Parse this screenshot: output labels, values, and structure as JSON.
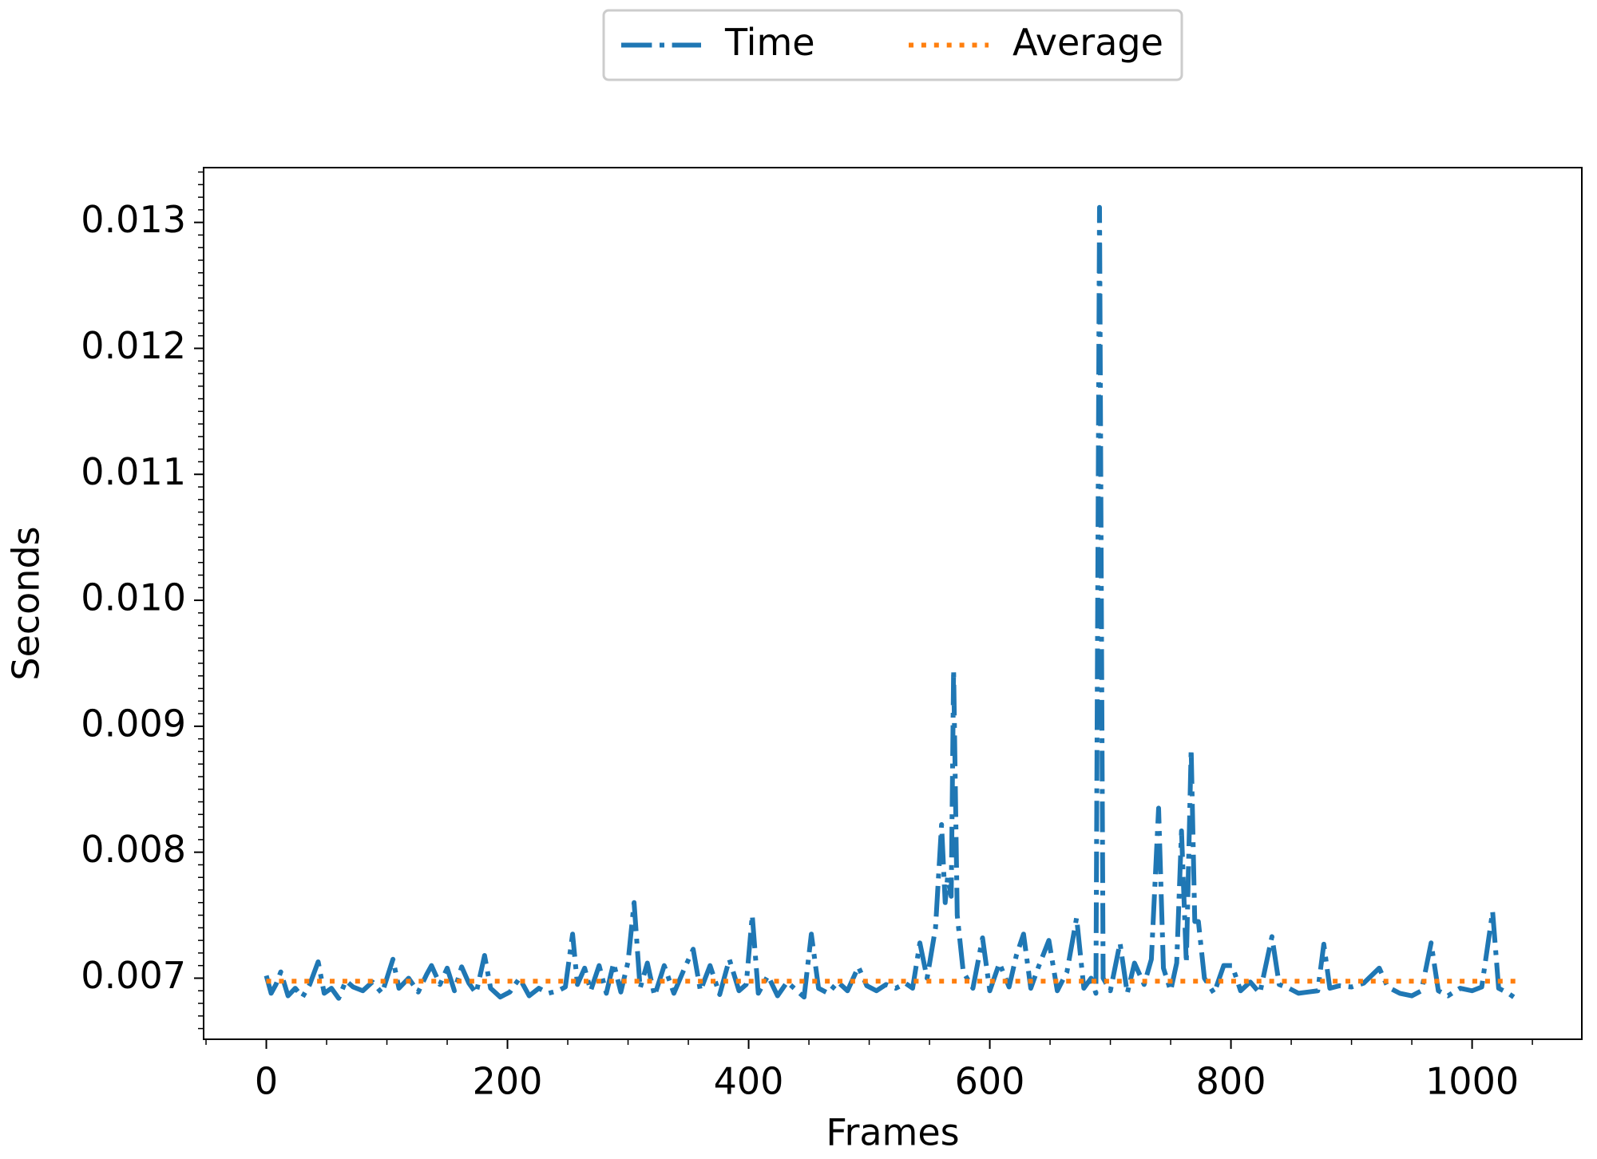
{
  "chart_data": {
    "type": "line",
    "xlabel": "Frames",
    "ylabel": "Seconds",
    "xlim": [
      -52,
      1091
    ],
    "ylim": [
      0.006515,
      0.013435
    ],
    "xticks": [
      0,
      200,
      400,
      600,
      800,
      1000
    ],
    "yticks": [
      0.007,
      0.008,
      0.009,
      {
        "value": 0.01,
        "label": "0.010"
      },
      0.011,
      0.012,
      0.013
    ],
    "xminorticks": [
      -50,
      50,
      100,
      150,
      250,
      300,
      350,
      450,
      500,
      550,
      650,
      700,
      750,
      850,
      900,
      950,
      1050
    ],
    "yminorticks": [
      0.0066,
      0.0067,
      0.0068,
      0.0069,
      0.0071,
      0.0072,
      0.0073,
      0.0074,
      0.0075,
      0.0076,
      0.0077,
      0.0078,
      0.0079,
      0.0081,
      0.0082,
      0.0083,
      0.0084,
      0.0085,
      0.0086,
      0.0087,
      0.0088,
      0.0089,
      0.0091,
      0.0092,
      0.0093,
      0.0094,
      0.0095,
      0.0096,
      0.0097,
      0.0098,
      0.0099,
      0.0101,
      0.0102,
      0.0103,
      0.0104,
      0.0105,
      0.0106,
      0.0107,
      0.0108,
      0.0109,
      0.0111,
      0.0112,
      0.0113,
      0.0114,
      0.0115,
      0.0116,
      0.0117,
      0.0118,
      0.0119,
      0.0121,
      0.0122,
      0.0123,
      0.0124,
      0.0125,
      0.0126,
      0.0127,
      0.0128,
      0.0129,
      0.0131,
      0.0132,
      0.0133,
      0.0134
    ],
    "legend": "upper center outside",
    "series": [
      {
        "name": "Time",
        "color": "#1f77b4",
        "style": "dashdot",
        "x": [
          0,
          4,
          8,
          12,
          18,
          24,
          30,
          36,
          43,
          48,
          54,
          60,
          66,
          72,
          80,
          88,
          96,
          105,
          110,
          118,
          126,
          133,
          137,
          144,
          150,
          156,
          162,
          168,
          174,
          181,
          186,
          194,
          202,
          210,
          218,
          226,
          234,
          242,
          248,
          254,
          258,
          264,
          269,
          276,
          282,
          288,
          294,
          300,
          305,
          310,
          316,
          322,
          330,
          338,
          346,
          354,
          360,
          368,
          376,
          384,
          392,
          398,
          403,
          408,
          416,
          424,
          432,
          440,
          446,
          452,
          458,
          466,
          474,
          482,
          491,
          498,
          506,
          514,
          522,
          530,
          536,
          542,
          548,
          555,
          560,
          563,
          565,
          568,
          570,
          573,
          578,
          586,
          594,
          600,
          608,
          616,
          622,
          628,
          634,
          640,
          649,
          656,
          664,
          672,
          678,
          684,
          688,
          691,
          694,
          700,
          708,
          714,
          720,
          728,
          734,
          740,
          744,
          750,
          755,
          759,
          763,
          767,
          770,
          773,
          778,
          786,
          794,
          801,
          808,
          816,
          824,
          834,
          840,
          848,
          856,
          864,
          872,
          877,
          882,
          890,
          900,
          910,
          923,
          930,
          940,
          950,
          958,
          966,
          972,
          980,
          990,
          1000,
          1008,
          1017,
          1022,
          1030,
          1039
        ],
        "values": [
          0.00702,
          0.00688,
          0.00695,
          0.00705,
          0.00686,
          0.00692,
          0.00685,
          0.00695,
          0.00713,
          0.00688,
          0.00692,
          0.00684,
          0.00698,
          0.00693,
          0.0069,
          0.00697,
          0.00688,
          0.00715,
          0.00692,
          0.007,
          0.00689,
          0.00703,
          0.0071,
          0.00695,
          0.00708,
          0.0069,
          0.00709,
          0.00696,
          0.00688,
          0.00718,
          0.00692,
          0.00685,
          0.00689,
          0.007,
          0.00686,
          0.00692,
          0.00688,
          0.0069,
          0.00693,
          0.00735,
          0.00695,
          0.00708,
          0.0069,
          0.0071,
          0.00688,
          0.00712,
          0.00689,
          0.00713,
          0.0076,
          0.00692,
          0.00712,
          0.00686,
          0.0071,
          0.00688,
          0.00706,
          0.00723,
          0.0069,
          0.0071,
          0.00687,
          0.00715,
          0.0069,
          0.00695,
          0.0075,
          0.00688,
          0.00702,
          0.00686,
          0.00697,
          0.0069,
          0.00685,
          0.00735,
          0.00692,
          0.00688,
          0.00697,
          0.0069,
          0.00709,
          0.00694,
          0.0069,
          0.00695,
          0.00692,
          0.00696,
          0.00692,
          0.00728,
          0.007,
          0.0074,
          0.00822,
          0.0076,
          0.0078,
          0.00765,
          0.00945,
          0.0075,
          0.00705,
          0.00692,
          0.00732,
          0.0069,
          0.00712,
          0.00693,
          0.00718,
          0.00735,
          0.00692,
          0.00708,
          0.0073,
          0.0069,
          0.00705,
          0.00748,
          0.00692,
          0.007,
          0.00688,
          0.01312,
          0.007,
          0.0069,
          0.00728,
          0.00688,
          0.00712,
          0.00695,
          0.00715,
          0.00835,
          0.00708,
          0.0069,
          0.00712,
          0.00817,
          0.00712,
          0.00882,
          0.00745,
          0.00745,
          0.007,
          0.00688,
          0.0071,
          0.0071,
          0.0069,
          0.00697,
          0.00688,
          0.00733,
          0.00695,
          0.00692,
          0.00688,
          0.00689,
          0.0069,
          0.00727,
          0.00692,
          0.00694,
          0.00693,
          0.00696,
          0.00708,
          0.00693,
          0.00688,
          0.00686,
          0.0069,
          0.00728,
          0.0069,
          0.00686,
          0.00692,
          0.0069,
          0.00693,
          0.00753,
          0.00692,
          0.00688,
          0.00682
        ]
      },
      {
        "name": "Average",
        "color": "#ff7f0e",
        "style": "dotted",
        "x": [
          0,
          1039
        ],
        "values": [
          0.006976,
          0.006976
        ]
      }
    ]
  }
}
